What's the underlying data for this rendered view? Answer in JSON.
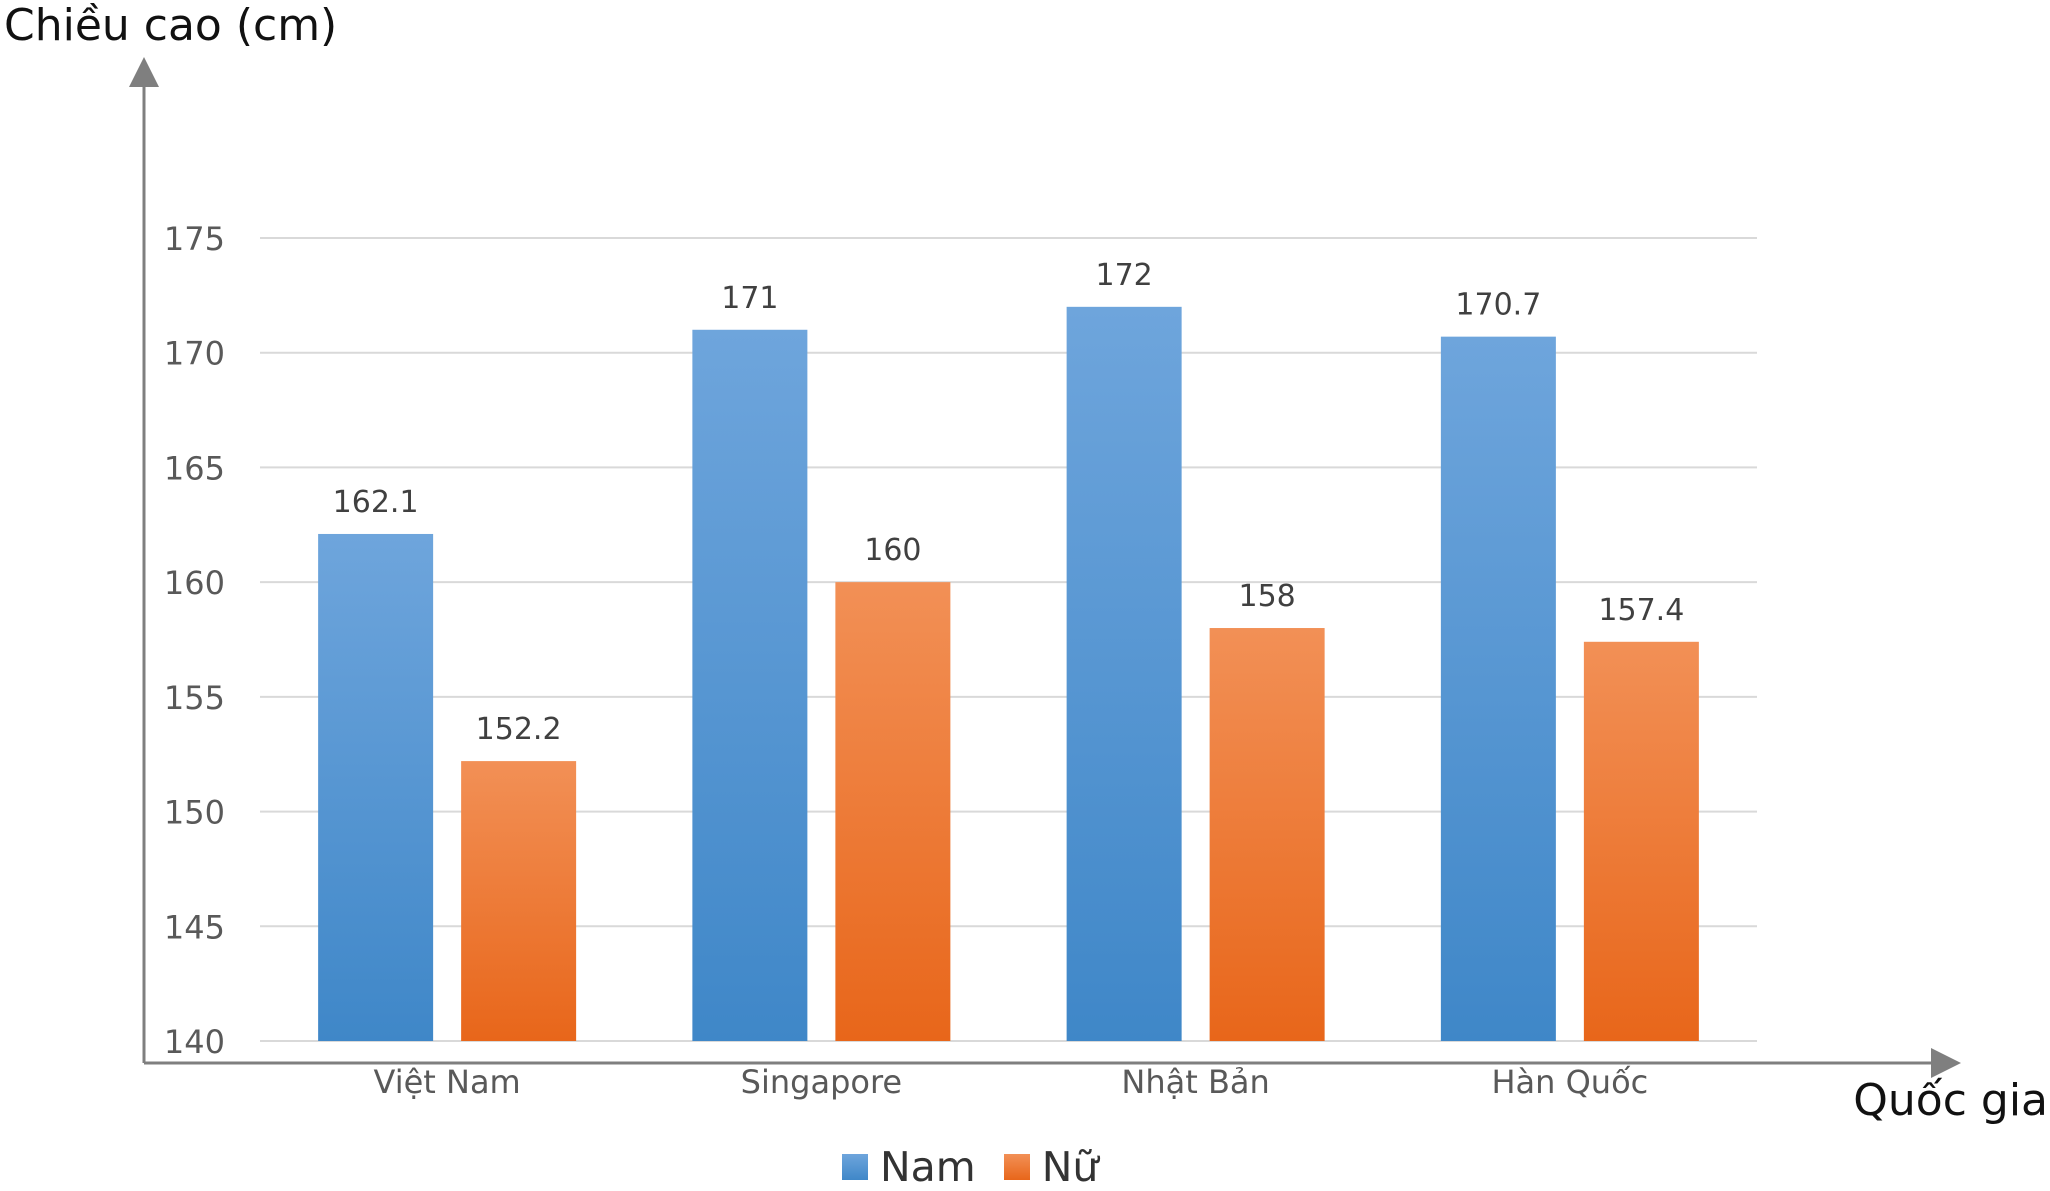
{
  "chart_data": {
    "type": "bar",
    "ylabel": "Chiều cao (cm)",
    "xlabel": "Quốc gia",
    "categories": [
      "Việt Nam",
      "Singapore",
      "Nhật Bản",
      "Hàn Quốc"
    ],
    "series": [
      {
        "name": "Nam",
        "values": [
          162.1,
          171,
          172,
          170.7
        ],
        "value_labels": [
          "162.1",
          "171",
          "172",
          "170.7"
        ],
        "color_top": "#6ea5dc",
        "color_bottom": "#3f87c8"
      },
      {
        "name": "Nữ",
        "values": [
          152.2,
          160,
          158,
          157.4
        ],
        "value_labels": [
          "152.2",
          "160",
          "158",
          "157.4"
        ],
        "color_top": "#f29056",
        "color_bottom": "#e8661a"
      }
    ],
    "ylim": [
      140,
      175
    ],
    "yticks": [
      140,
      145,
      150,
      155,
      160,
      165,
      170,
      175
    ],
    "grid": true,
    "legend": "bottom-center"
  }
}
